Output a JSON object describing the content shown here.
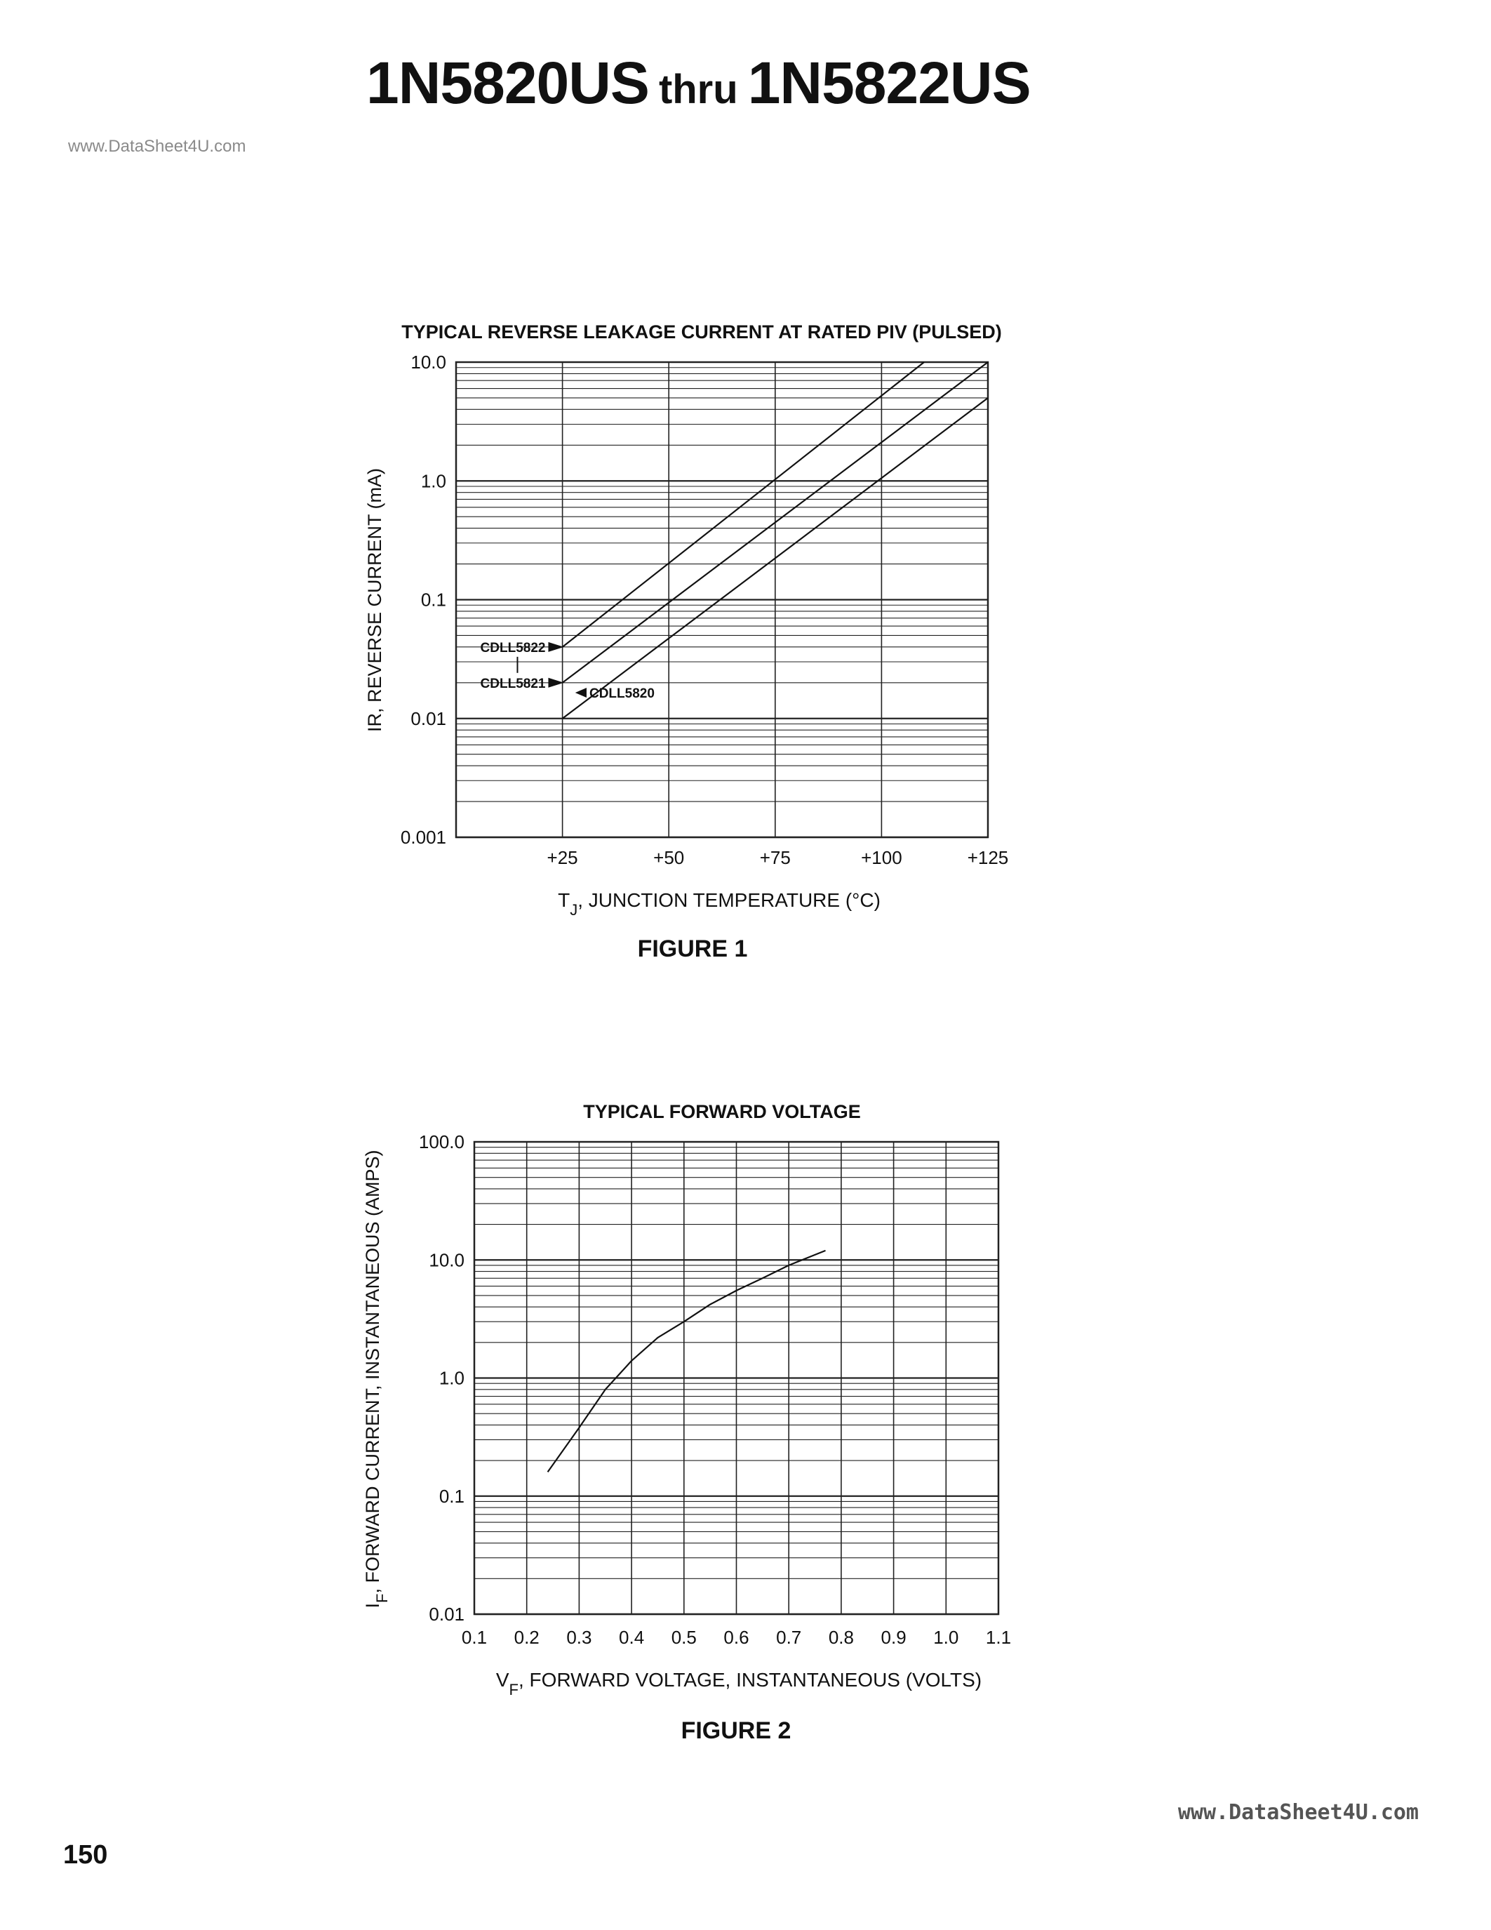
{
  "header": {
    "title_part1": "1N5820US",
    "title_connector": "thru",
    "title_part2": "1N5822US"
  },
  "watermark_top": "www.DataSheet4U.com",
  "watermark_bottom": "www.DataSheet4U.com",
  "page_number": "150",
  "chart_data": [
    {
      "type": "line",
      "title": "TYPICAL REVERSE LEAKAGE CURRENT AT RATED PIV (PULSED)",
      "xlabel": "T",
      "xlabel_sub": "J",
      "xlabel_rest": ", JUNCTION TEMPERATURE (°C)",
      "ylabel": "IR, REVERSE CURRENT (mA)",
      "caption": "FIGURE 1",
      "xscale": "linear",
      "yscale": "log",
      "xlim": [
        0,
        125
      ],
      "ylim": [
        0.001,
        10.0
      ],
      "xticks": [
        25,
        50,
        75,
        100,
        125
      ],
      "xtick_labels": [
        "+25",
        "+50",
        "+75",
        "+100",
        "+125"
      ],
      "yticks": [
        0.001,
        0.01,
        0.1,
        1.0,
        10.0
      ],
      "ytick_labels": [
        "0.001",
        "0.01",
        "0.1",
        "1.0",
        "10.0"
      ],
      "grid": true,
      "series": [
        {
          "name": "CDLL5822",
          "x": [
            25,
            110
          ],
          "y": [
            0.04,
            10.0
          ]
        },
        {
          "name": "CDLL5821",
          "x": [
            25,
            125
          ],
          "y": [
            0.02,
            10.0
          ]
        },
        {
          "name": "CDLL5820",
          "x": [
            25,
            125
          ],
          "y": [
            0.01,
            5.0
          ]
        }
      ],
      "annotations": [
        {
          "text": "CDLL5822",
          "x": 23,
          "y": 0.04
        },
        {
          "text": "CDLL5821",
          "x": 23,
          "y": 0.02
        },
        {
          "text": "CDLL5820",
          "x": 31,
          "y": 0.0165
        }
      ]
    },
    {
      "type": "line",
      "title": "TYPICAL FORWARD VOLTAGE",
      "xlabel": "V",
      "xlabel_sub": "F",
      "xlabel_rest": ", FORWARD VOLTAGE, INSTANTANEOUS (VOLTS)",
      "ylabel": "I",
      "ylabel_sub": "F",
      "ylabel_rest": ", FORWARD CURRENT, INSTANTANEOUS (AMPS)",
      "caption": "FIGURE 2",
      "xscale": "linear",
      "yscale": "log",
      "xlim": [
        0.1,
        1.1
      ],
      "ylim": [
        0.01,
        100.0
      ],
      "xticks": [
        0.1,
        0.2,
        0.3,
        0.4,
        0.5,
        0.6,
        0.7,
        0.8,
        0.9,
        1.0,
        1.1
      ],
      "xtick_labels": [
        "0.1",
        "0.2",
        "0.3",
        "0.4",
        "0.5",
        "0.6",
        "0.7",
        "0.8",
        "0.9",
        "1.0",
        "1.1"
      ],
      "yticks": [
        0.01,
        0.1,
        1.0,
        10.0,
        100.0
      ],
      "ytick_labels": [
        "0.01",
        "0.1",
        "1.0",
        "10.0",
        "100.0"
      ],
      "grid": true,
      "series": [
        {
          "x": [
            0.24,
            0.3,
            0.35,
            0.4,
            0.45,
            0.5,
            0.55,
            0.6,
            0.65,
            0.7,
            0.77
          ],
          "y": [
            0.16,
            0.38,
            0.8,
            1.4,
            2.2,
            3.0,
            4.2,
            5.5,
            7.0,
            9.0,
            12.0
          ]
        }
      ]
    }
  ]
}
